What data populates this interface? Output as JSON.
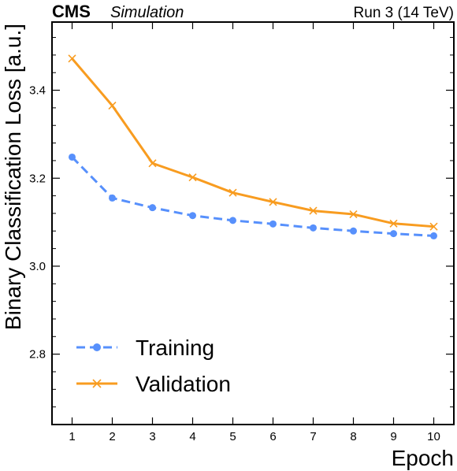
{
  "header": {
    "experiment": "CMS",
    "label": "Simulation",
    "run_info": "Run 3 (14 TeV)"
  },
  "chart_data": {
    "type": "line",
    "xlabel": "Epoch",
    "ylabel": "Binary Classification Loss [a.u.]",
    "x": [
      1,
      2,
      3,
      4,
      5,
      6,
      7,
      8,
      9,
      10
    ],
    "xlim": [
      0.5,
      10.5
    ],
    "ylim": [
      2.64,
      3.555
    ],
    "x_ticks": [
      1,
      2,
      3,
      4,
      5,
      6,
      7,
      8,
      9,
      10
    ],
    "y_ticks": [
      2.8,
      3.0,
      3.2,
      3.4
    ],
    "y_tick_labels": [
      "2.8",
      "3.0",
      "3.2",
      "3.4"
    ],
    "legend_position": "lower-left",
    "series": [
      {
        "name": "Training",
        "values": [
          3.248,
          3.155,
          3.133,
          3.115,
          3.104,
          3.096,
          3.087,
          3.08,
          3.074,
          3.069
        ],
        "color": "#5790fc",
        "line_style": "dashed",
        "marker": "circle"
      },
      {
        "name": "Validation",
        "values": [
          3.472,
          3.365,
          3.234,
          3.202,
          3.167,
          3.146,
          3.126,
          3.118,
          3.097,
          3.09
        ],
        "color": "#f89c20",
        "line_style": "solid",
        "marker": "x"
      }
    ]
  }
}
